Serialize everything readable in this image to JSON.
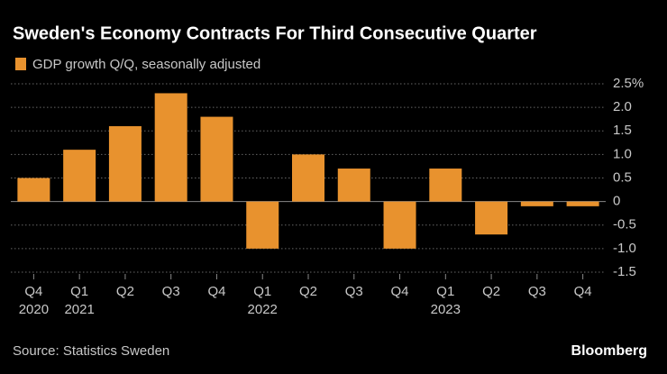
{
  "chart_data": {
    "type": "bar",
    "title": "Sweden's Economy Contracts For Third Consecutive Quarter",
    "categories": [
      "Q4",
      "Q1",
      "Q2",
      "Q3",
      "Q4",
      "Q1",
      "Q2",
      "Q3",
      "Q4",
      "Q1",
      "Q2",
      "Q3",
      "Q4"
    ],
    "x_sublabels": [
      "2020",
      "2021",
      null,
      null,
      null,
      "2022",
      null,
      null,
      null,
      "2023",
      null,
      null,
      null
    ],
    "series": [
      {
        "name": "GDP growth Q/Q, seasonally adjusted",
        "color": "#e8922e",
        "values": [
          0.5,
          1.1,
          1.6,
          2.3,
          1.8,
          -1.0,
          1.0,
          0.7,
          -1.0,
          0.7,
          -0.7,
          -0.1,
          -0.1
        ]
      }
    ],
    "ylim": [
      -1.5,
      2.5
    ],
    "yticks": [
      -1.5,
      {
        "value": -1.0,
        "label": "-1.0"
      },
      -0.5,
      0,
      0.5,
      {
        "value": 1.0,
        "label": "1.0"
      },
      1.5,
      {
        "value": 2.0,
        "label": "2.0"
      },
      {
        "value": 2.5,
        "label": "2.5%"
      }
    ],
    "grid": true,
    "source": "Source: Statistics Sweden",
    "brand": "Bloomberg"
  }
}
